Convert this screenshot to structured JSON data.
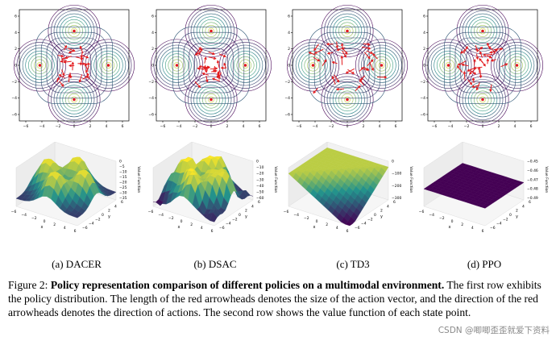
{
  "figure": {
    "label": "Figure 2:",
    "title": "Policy representation comparison of different policies on a multimodal environment.",
    "description": "The first row exhibits the policy distribution. The length of the red arrowheads denotes the size of the action vector, and the direction of the red arrowheads denotes the direction of actions. The second row shows the value function of each state point."
  },
  "panels": [
    {
      "caption": "(a) DACER",
      "zticks": [
        "0",
        "−5",
        "−10",
        "−15",
        "−20",
        "−25",
        "−30",
        "−35"
      ]
    },
    {
      "caption": "(b) DSAC",
      "zticks": [
        "0",
        "−10",
        "−20",
        "−30",
        "−40",
        "−50",
        "−60"
      ]
    },
    {
      "caption": "(c) TD3",
      "zticks": [
        "0",
        "−100",
        "−200",
        "−300"
      ]
    },
    {
      "caption": "(d) PPO",
      "zticks": [
        "−0.45",
        "−0.46",
        "−0.47",
        "−0.48",
        "−0.49"
      ]
    }
  ],
  "contour_axis_ticks": {
    "x": [
      "−6",
      "−4",
      "−2",
      "0",
      "2",
      "4",
      "6"
    ],
    "y": [
      "6",
      "4",
      "2",
      "0",
      "−2",
      "−4",
      "−6"
    ]
  },
  "surface_axis_ticks": {
    "x": [
      "−6",
      "−4",
      "−2",
      "0",
      "2",
      "4",
      "6"
    ],
    "y": [
      "−6",
      "−4",
      "−2",
      "0",
      "2",
      "4",
      "6"
    ]
  },
  "axis_labels": {
    "x": "x",
    "y": "y",
    "z": "Value Function"
  },
  "watermark": "CSDN @唧唧歪歪就爱下资料",
  "colors": {
    "arrow": "#e31a1c",
    "surface_low": "#440154",
    "surface_mid": "#21918c",
    "surface_high": "#fde725"
  }
}
